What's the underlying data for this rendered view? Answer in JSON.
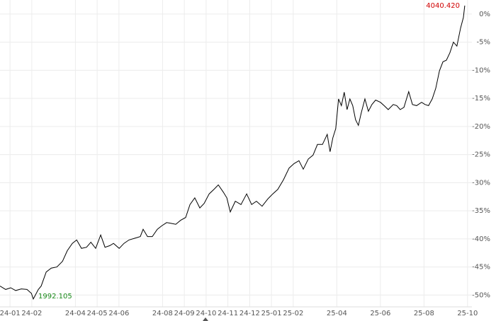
{
  "chart_data": {
    "type": "line",
    "color": "#000000",
    "grid": true,
    "x": [
      -0.46,
      -0.2,
      0.03,
      0.26,
      0.52,
      0.78,
      0.98,
      1.07,
      1.3,
      1.43,
      1.66,
      1.89,
      2.15,
      2.41,
      2.63,
      2.86,
      3.06,
      3.28,
      3.51,
      3.71,
      3.93,
      4.16,
      4.36,
      4.58,
      4.75,
      5.01,
      5.23,
      5.46,
      5.72,
      5.98,
      6.11,
      6.31,
      6.53,
      6.76,
      6.96,
      7.19,
      7.35,
      7.61,
      7.83,
      8.06,
      8.26,
      8.48,
      8.71,
      8.91,
      9.14,
      9.36,
      9.56,
      9.79,
      9.95,
      10.11,
      10.34,
      10.6,
      10.86,
      11.09,
      11.31,
      11.57,
      11.83,
      12.06,
      12.29,
      12.55,
      12.81,
      13.04,
      13.26,
      13.46,
      13.69,
      13.91,
      14.11,
      14.34,
      14.56,
      14.69,
      14.82,
      14.95,
      15.08,
      15.21,
      15.34,
      15.47,
      15.6,
      15.73,
      15.86,
      15.99,
      16.12,
      16.29,
      16.45,
      16.61,
      16.78,
      17.0,
      17.17,
      17.36,
      17.59,
      17.75,
      17.91,
      18.08,
      18.3,
      18.47,
      18.66,
      18.89,
      19.05,
      19.21,
      19.38,
      19.54,
      19.71,
      19.87,
      20.03,
      20.19,
      20.35,
      20.51,
      20.68,
      20.81,
      20.87
    ],
    "values": [
      -48.4,
      -49,
      -48.7,
      -49.2,
      -48.9,
      -49,
      -49.7,
      -50.7,
      -49,
      -48.4,
      -45.9,
      -45.2,
      -45,
      -44,
      -42.1,
      -40.8,
      -40.2,
      -41.7,
      -41.5,
      -40.6,
      -41.7,
      -39.3,
      -41.5,
      -41.2,
      -40.8,
      -41.7,
      -40.8,
      -40.2,
      -39.9,
      -39.6,
      -38.3,
      -39.6,
      -39.6,
      -38.3,
      -37.7,
      -37.1,
      -37.2,
      -37.4,
      -36.7,
      -36.2,
      -33.9,
      -32.7,
      -34.5,
      -33.7,
      -32,
      -31.2,
      -30.4,
      -31.7,
      -32.7,
      -35.2,
      -33.3,
      -33.9,
      -32,
      -33.9,
      -33.3,
      -34.2,
      -32.9,
      -32,
      -31.2,
      -29.5,
      -27.4,
      -26.6,
      -26.1,
      -27.6,
      -25.8,
      -25.1,
      -23.2,
      -23.2,
      -21.4,
      -24.5,
      -22,
      -20.4,
      -15.1,
      -16.3,
      -13.9,
      -17,
      -15.1,
      -16.3,
      -18.8,
      -19.8,
      -17.6,
      -15.1,
      -17.3,
      -16.1,
      -15.3,
      -15.7,
      -16.3,
      -17,
      -16.1,
      -16.3,
      -17,
      -16.6,
      -13.8,
      -16.1,
      -16.3,
      -15.7,
      -16.1,
      -16.3,
      -15.1,
      -13.2,
      -10.1,
      -8.5,
      -8.2,
      -6.9,
      -5,
      -5.7,
      -2.5,
      -0.6,
      1.5
    ],
    "xlim": [
      -0.46,
      21.2
    ],
    "xticks": [
      {
        "value": 0,
        "label": "24-01"
      },
      {
        "value": 1,
        "label": "24-02"
      },
      {
        "value": 3,
        "label": "24-04"
      },
      {
        "value": 4,
        "label": "24-05"
      },
      {
        "value": 5,
        "label": "24-06"
      },
      {
        "value": 7,
        "label": "24-08"
      },
      {
        "value": 8,
        "label": "24-09"
      },
      {
        "value": 9,
        "label": "24-10"
      },
      {
        "value": 10,
        "label": "24-11"
      },
      {
        "value": 11,
        "label": "24-12"
      },
      {
        "value": 12,
        "label": "25-01"
      },
      {
        "value": 13,
        "label": "25-02"
      },
      {
        "value": 15,
        "label": "25-04"
      },
      {
        "value": 17,
        "label": "25-06"
      },
      {
        "value": 19,
        "label": "25-08"
      },
      {
        "value": 21,
        "label": "25-10"
      }
    ],
    "ylim": [
      -52.1,
      2.5
    ],
    "yticks": [
      {
        "value": 0,
        "label": "0%"
      },
      {
        "value": -5,
        "label": "-5%"
      },
      {
        "value": -10,
        "label": "-10%"
      },
      {
        "value": -15,
        "label": "-15%"
      },
      {
        "value": -20,
        "label": "-20%"
      },
      {
        "value": -25,
        "label": "-25%"
      },
      {
        "value": -30,
        "label": "-30%"
      },
      {
        "value": -35,
        "label": "-35%"
      },
      {
        "value": -40,
        "label": "-40%"
      },
      {
        "value": -45,
        "label": "-45%"
      },
      {
        "value": -50,
        "label": "-50%"
      }
    ],
    "max_label": "4040.420",
    "min_label": "1992.105"
  }
}
